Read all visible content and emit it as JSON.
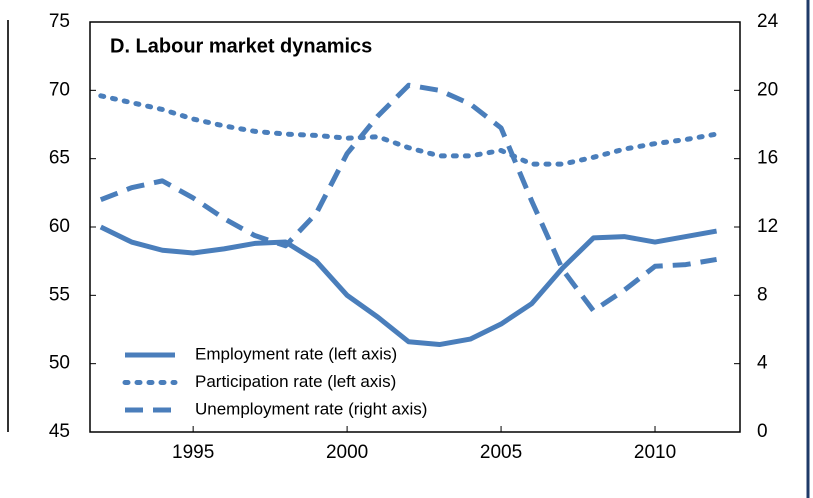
{
  "chart_data": {
    "type": "line",
    "title": "D. Labour market dynamics",
    "x": [
      1992,
      1993,
      1994,
      1995,
      1996,
      1997,
      1998,
      1999,
      2000,
      2001,
      2002,
      2003,
      2004,
      2005,
      2006,
      2007,
      2008,
      2009,
      2010,
      2011,
      2012
    ],
    "series": [
      {
        "name": "Employment rate (left axis)",
        "color": "#4a7ebb",
        "style": "solid",
        "values": [
          60,
          58.9,
          58.3,
          58.1,
          58.4,
          58.8,
          58.9,
          57.5,
          55,
          53.4,
          51.6,
          51.4,
          51.8,
          52.9,
          54.4,
          57,
          59.2,
          59.3,
          58.9,
          59.3,
          59.7
        ]
      },
      {
        "name": "Participation rate (left axis)",
        "color": "#4a7ebb",
        "style": "dotted",
        "values": [
          69.6,
          69.1,
          68.6,
          67.9,
          67.4,
          67,
          66.8,
          66.7,
          66.5,
          66.6,
          65.8,
          65.2,
          65.2,
          65.6,
          64.6,
          64.6,
          65.1,
          65.7,
          66.1,
          66.4,
          66.8
        ]
      },
      {
        "name": "Unemployment rate (right axis)",
        "color": "#4a7ebb",
        "style": "dashed",
        "axis": "y2",
        "values": [
          13.6,
          14.3,
          14.7,
          13.7,
          12.5,
          11.5,
          10.9,
          12.8,
          16.3,
          18.5,
          20.3,
          20,
          19.2,
          17.8,
          13.5,
          9.5,
          7.1,
          8.3,
          9.7,
          9.8,
          10.1
        ]
      }
    ],
    "xlim": [
      1991.65,
      2012.76
    ],
    "xticks": [
      1995,
      2000,
      2005,
      2010
    ],
    "ylim": [
      45,
      75
    ],
    "yticks": [
      45,
      50,
      55,
      60,
      65,
      70,
      75
    ],
    "y2lim": [
      0,
      24
    ],
    "y2ticks": [
      0,
      4,
      8,
      12,
      16,
      20,
      24
    ],
    "legend": "lower-left"
  }
}
